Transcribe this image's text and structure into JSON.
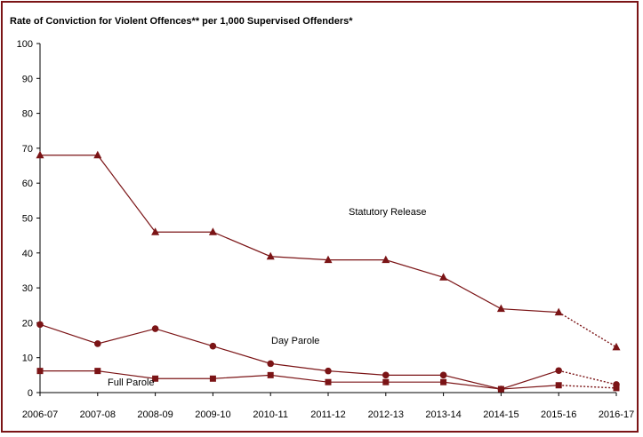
{
  "chart_data": {
    "type": "line",
    "title": "Rate of Conviction for Violent Offences** per 1,000 Supervised Offenders*",
    "xlabel": "",
    "ylabel": "",
    "ylim": [
      0,
      100
    ],
    "y_ticks": [
      "0",
      "10",
      "20",
      "30",
      "40",
      "50",
      "60",
      "70",
      "80",
      "90",
      "100"
    ],
    "grid": false,
    "categories": [
      "2006-07",
      "2007-08",
      "2008-09",
      "2009-10",
      "2010-11",
      "2011-12",
      "2012-13",
      "2013-14",
      "2014-15",
      "2015-16",
      "2016-17"
    ],
    "series": [
      {
        "name": "Statutory Release",
        "marker": "triangle",
        "values": [
          68,
          68,
          46,
          46,
          39,
          38,
          38,
          33,
          24,
          23,
          13
        ],
        "projected_from_index": 9
      },
      {
        "name": "Day Parole",
        "marker": "circle",
        "values": [
          19.5,
          14,
          18.3,
          13.3,
          8.3,
          6.2,
          5,
          5,
          1,
          6.3,
          2.3
        ],
        "projected_from_index": 9
      },
      {
        "name": "Full Parole",
        "marker": "square",
        "values": [
          6.2,
          6.2,
          4,
          4,
          5,
          3,
          3,
          3,
          1,
          2.1,
          1.3
        ],
        "projected_from_index": 9
      }
    ],
    "colors": {
      "line": "#7b1416",
      "frame": "#7b1416",
      "axis": "#000000"
    }
  }
}
